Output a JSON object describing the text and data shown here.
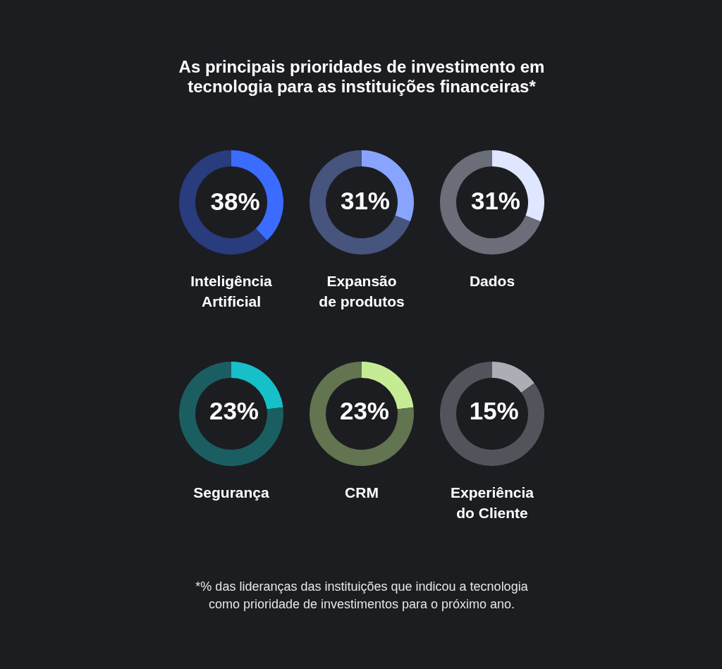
{
  "chart_data": [
    {
      "type": "other",
      "title": "As principais prioridades de investimento em tecnologia para as instituições financeiras*"
    },
    {
      "type": "donut",
      "title": "Inteligência Artificial",
      "categories": [
        null,
        null
      ],
      "values": [
        38,
        62
      ],
      "colors": [
        "#3b6cff",
        "#283c7e"
      ],
      "value_labels": [
        "38%",
        null
      ]
    },
    {
      "type": "donut",
      "title": "Expansão de produtos",
      "categories": [
        null,
        null
      ],
      "values": [
        31,
        69
      ],
      "colors": [
        "#88a4ff",
        "#46547e"
      ],
      "value_labels": [
        "31%",
        null
      ]
    },
    {
      "type": "donut",
      "title": "Dados",
      "categories": [
        null,
        null
      ],
      "values": [
        31,
        69
      ],
      "colors": [
        "#dfe6ff",
        "#6b6e78"
      ],
      "value_labels": [
        "31%",
        null
      ]
    },
    {
      "type": "donut",
      "title": "Segurança",
      "categories": [
        null,
        null
      ],
      "values": [
        23,
        77
      ],
      "colors": [
        "#16c0c8",
        "#1a5e62"
      ],
      "value_labels": [
        "23%",
        null
      ]
    },
    {
      "type": "donut",
      "title": "CRM",
      "categories": [
        null,
        null
      ],
      "values": [
        23,
        77
      ],
      "colors": [
        "#c5ec94",
        "#627450"
      ],
      "value_labels": [
        "23%",
        null
      ]
    },
    {
      "type": "donut",
      "title": "Experiência do Cliente",
      "categories": [
        null,
        null
      ],
      "values": [
        15,
        85
      ],
      "colors": [
        "#adadb6",
        "#52545b"
      ],
      "value_labels": [
        "15%",
        null
      ]
    },
    {
      "type": "other",
      "annotations": [
        "*% das lideranças das instituições que indicou a tecnologia como prioridade de investimentos para o próximo ano."
      ]
    }
  ]
}
